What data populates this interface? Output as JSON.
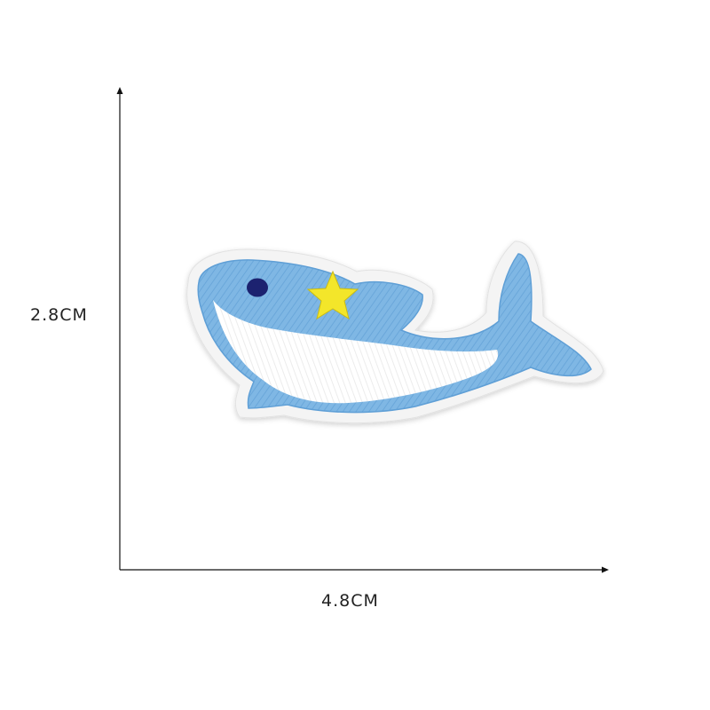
{
  "dimensions": {
    "height_label": "2.8CM",
    "width_label": "4.8CM"
  },
  "colors": {
    "background": "#ffffff",
    "axis": "#111111",
    "patch_border": "#f4f4f4",
    "dolphin_blue": "#7fb7e4",
    "dolphin_blue_dark": "#5e9fd6",
    "belly_white": "#ffffff",
    "eye": "#1a2470",
    "star": "#f3e62a"
  },
  "icons": {
    "dolphin": "dolphin-patch-icon",
    "star": "star-icon"
  }
}
